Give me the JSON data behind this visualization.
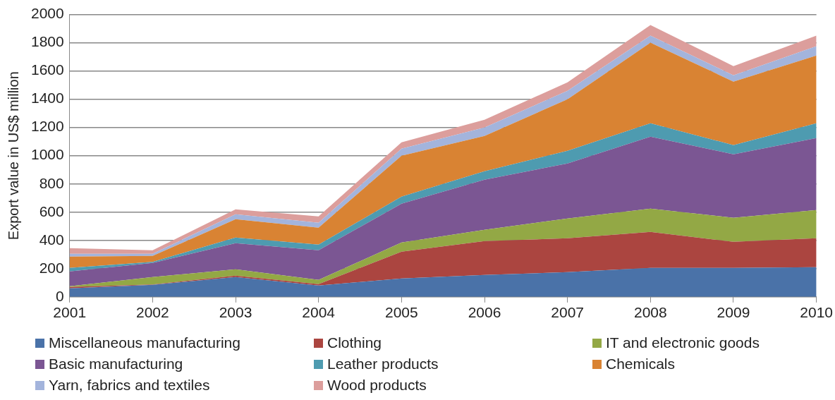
{
  "chart_data": {
    "type": "area",
    "stacked": true,
    "ylabel": "Export value in US$ million",
    "categories": [
      "2001",
      "2002",
      "2003",
      "2004",
      "2005",
      "2006",
      "2007",
      "2008",
      "2009",
      "2010"
    ],
    "series": [
      {
        "name": "Miscellaneous manufacturing",
        "color": "#4a72a8",
        "values": [
          60,
          85,
          140,
          80,
          130,
          155,
          175,
          205,
          205,
          210
        ]
      },
      {
        "name": "Clothing",
        "color": "#ab4540",
        "values": [
          10,
          3,
          10,
          10,
          190,
          240,
          240,
          255,
          185,
          205
        ]
      },
      {
        "name": "IT and electronic goods",
        "color": "#93a845",
        "values": [
          5,
          52,
          45,
          30,
          65,
          80,
          140,
          165,
          170,
          200
        ]
      },
      {
        "name": "Basic manufacturing",
        "color": "#7b5693",
        "values": [
          105,
          100,
          185,
          210,
          275,
          355,
          390,
          510,
          450,
          510
        ]
      },
      {
        "name": "Leather products",
        "color": "#4e9bb0",
        "values": [
          25,
          8,
          40,
          40,
          50,
          60,
          90,
          95,
          65,
          105
        ]
      },
      {
        "name": "Chemicals",
        "color": "#d98333",
        "values": [
          80,
          42,
          130,
          120,
          290,
          250,
          365,
          570,
          450,
          480
        ]
      },
      {
        "name": "Yarn, fabrics and textiles",
        "color": "#a3b4dc",
        "values": [
          20,
          15,
          35,
          35,
          50,
          60,
          60,
          50,
          45,
          65
        ]
      },
      {
        "name": "Wood products",
        "color": "#dc9e9c",
        "values": [
          40,
          25,
          35,
          45,
          45,
          55,
          60,
          75,
          65,
          75
        ]
      }
    ],
    "ylim": [
      0,
      2000
    ],
    "yticks": [
      0,
      200,
      400,
      600,
      800,
      1000,
      1200,
      1400,
      1600,
      1800,
      2000
    ],
    "grid": "y",
    "legend": "bottom"
  }
}
